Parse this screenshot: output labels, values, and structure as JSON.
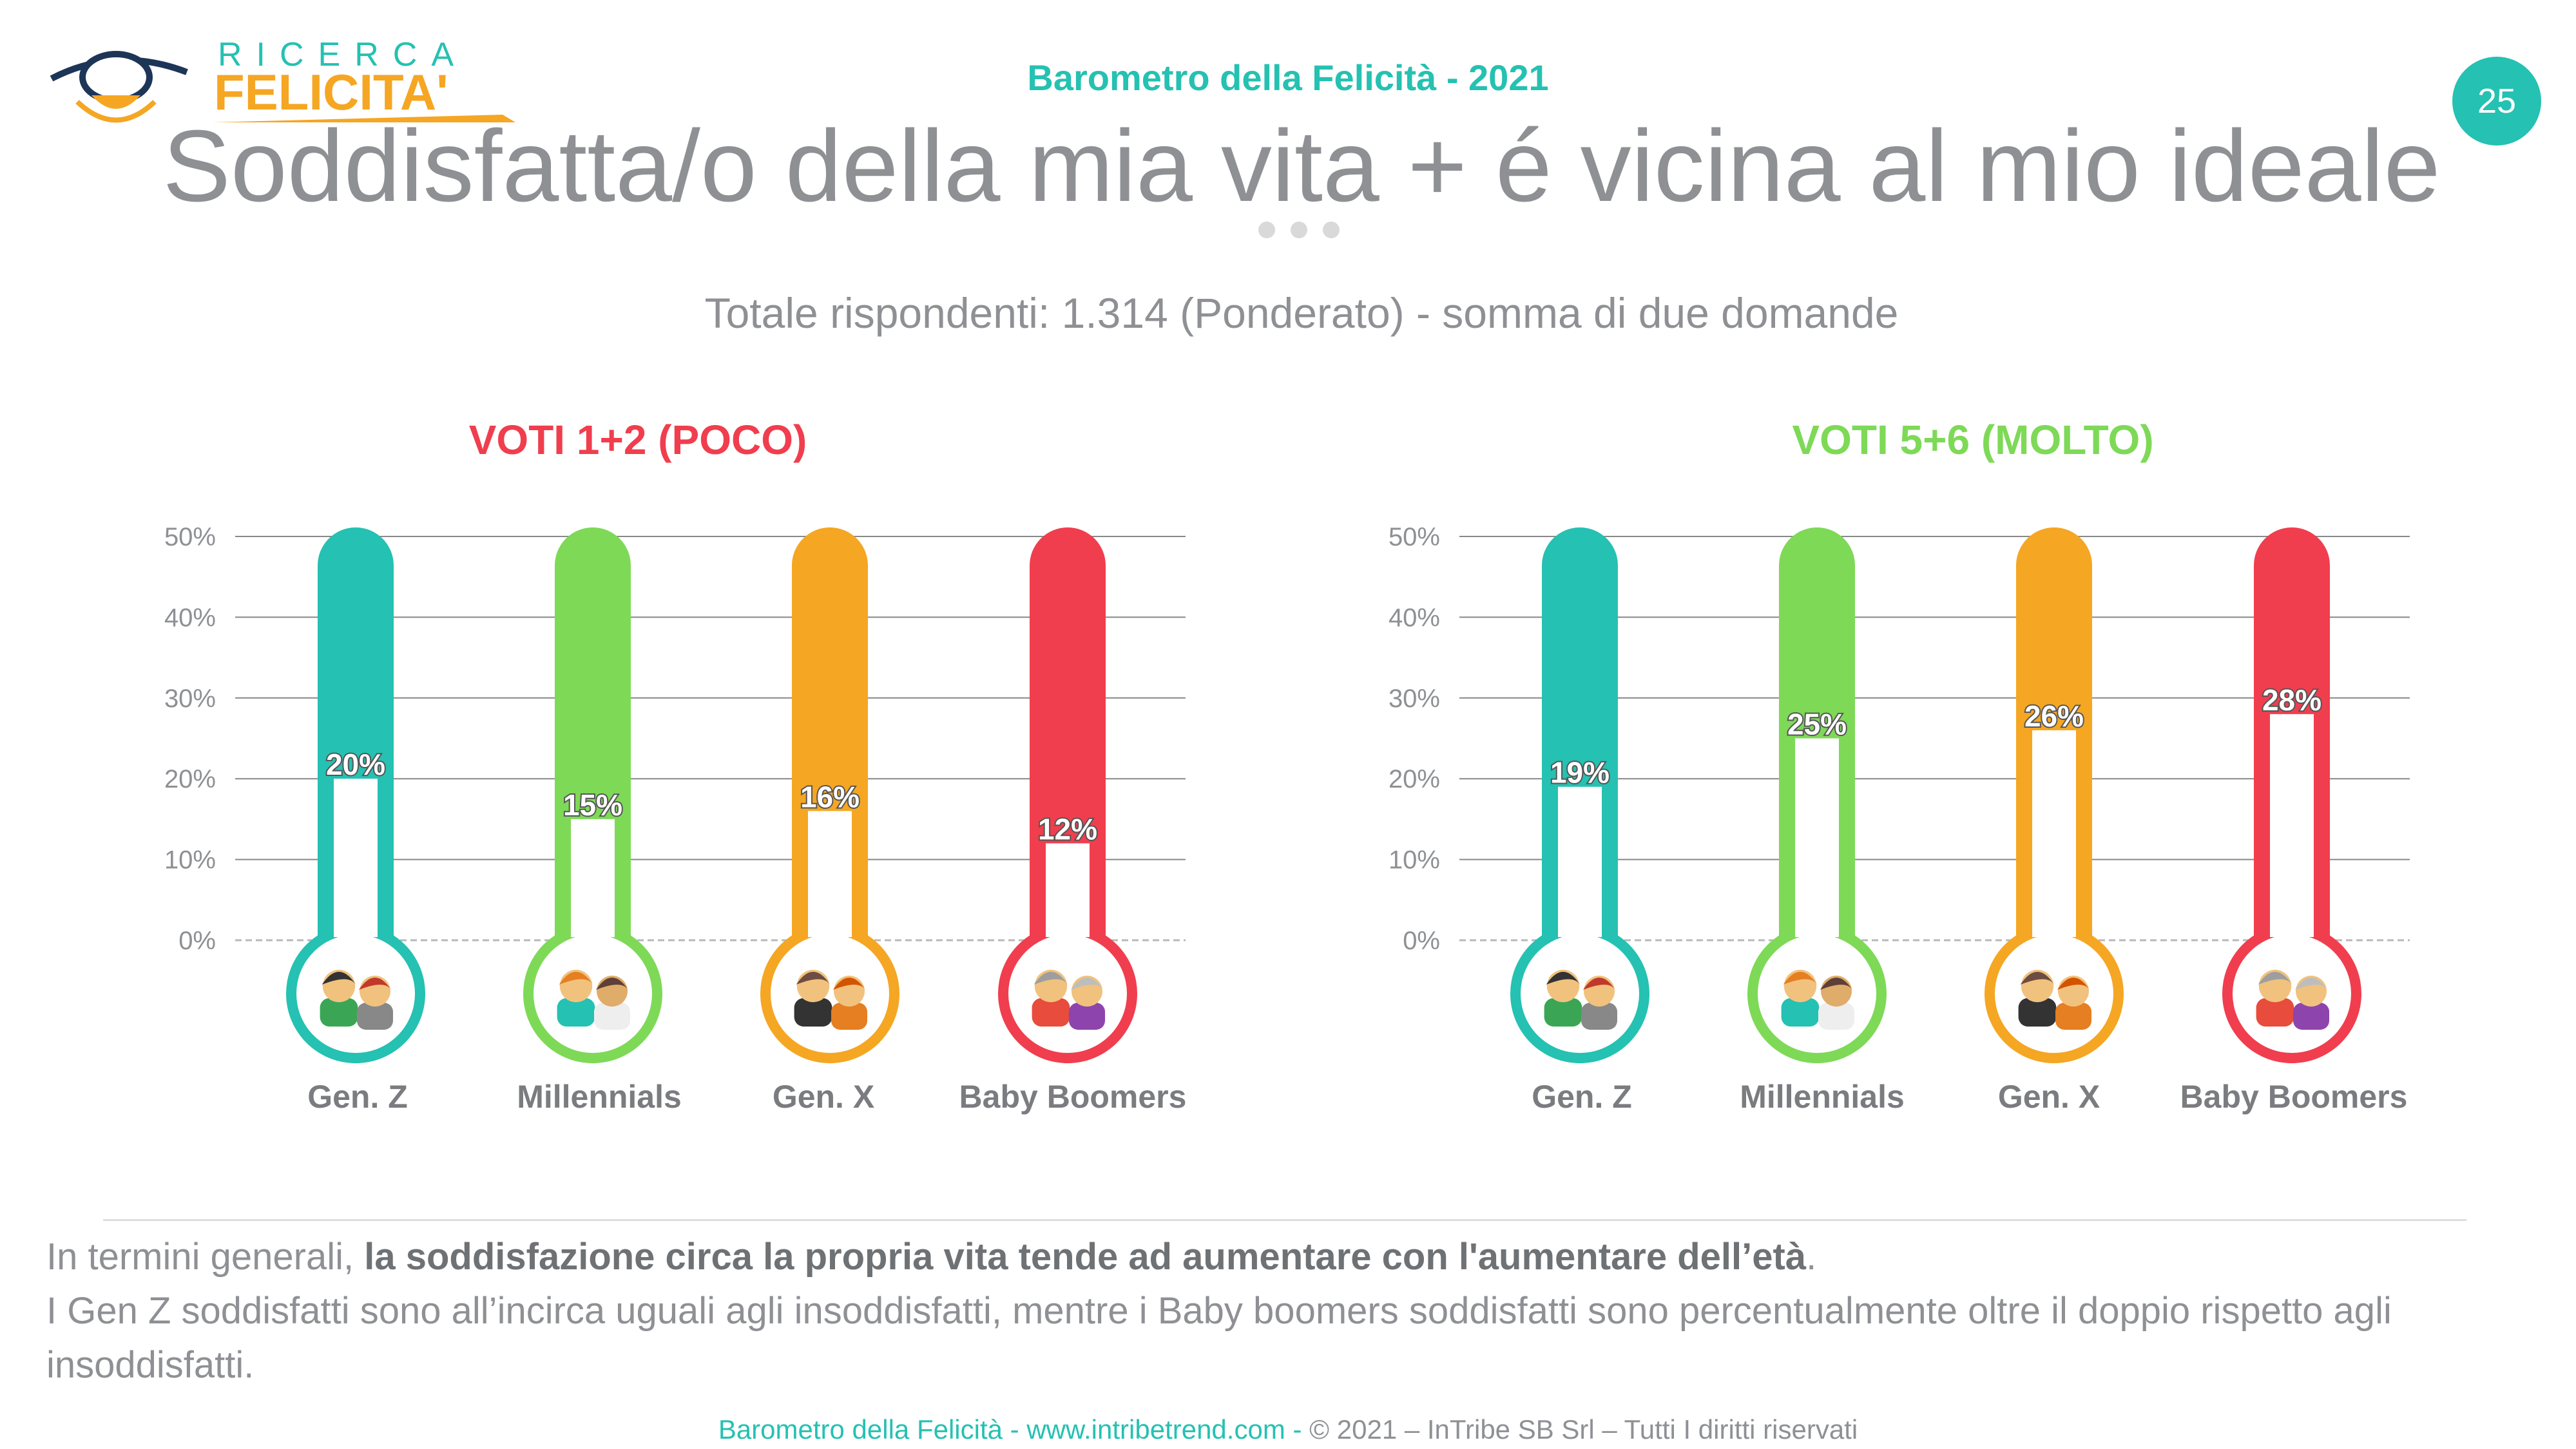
{
  "header": {
    "title": "Barometro della Felicità - 2021",
    "page_number": "25"
  },
  "logo": {
    "line1": "RICERCA",
    "line2": "FELICITA'"
  },
  "main_title": "Soddisfatta/o della mia vita + é vicina al mio ideale",
  "subtitle": "Totale rispondenti: 1.314 (Ponderato) - somma di due domande",
  "colors": {
    "teal": "#25c1b2",
    "green": "#7ed957",
    "orange": "#f5a623",
    "red": "#f03e4e",
    "gray_text": "#8e9094"
  },
  "chart_data": [
    {
      "type": "bar",
      "title": "VOTI 1+2 (POCO)",
      "title_color": "#f03e4e",
      "categories": [
        "Gen. Z",
        "Millennials",
        "Gen. X",
        "Baby Boomers"
      ],
      "values": [
        20,
        15,
        16,
        12
      ],
      "value_labels": [
        "20%",
        "15%",
        "16%",
        "12%"
      ],
      "bar_colors": [
        "#25c1b2",
        "#7ed957",
        "#f5a623",
        "#f03e4e"
      ],
      "icons": [
        "gen-z-people-icon",
        "millennials-people-icon",
        "gen-x-people-icon",
        "baby-boomers-people-icon"
      ],
      "ylim": [
        0,
        50
      ],
      "y_ticks": [
        "0%",
        "10%",
        "20%",
        "30%",
        "40%",
        "50%"
      ],
      "grid": true
    },
    {
      "type": "bar",
      "title": "VOTI 5+6 (MOLTO)",
      "title_color": "#7ed957",
      "categories": [
        "Gen. Z",
        "Millennials",
        "Gen. X",
        "Baby Boomers"
      ],
      "values": [
        19,
        25,
        26,
        28
      ],
      "value_labels": [
        "19%",
        "25%",
        "26%",
        "28%"
      ],
      "bar_colors": [
        "#25c1b2",
        "#7ed957",
        "#f5a623",
        "#f03e4e"
      ],
      "icons": [
        "gen-z-people-icon",
        "millennials-people-icon",
        "gen-x-people-icon",
        "baby-boomers-people-icon"
      ],
      "ylim": [
        0,
        50
      ],
      "y_ticks": [
        "0%",
        "10%",
        "20%",
        "30%",
        "40%",
        "50%"
      ],
      "grid": true
    }
  ],
  "conclusion": {
    "line1_prefix": "In termini generali, ",
    "line1_bold": "la soddisfazione circa la propria vita tende ad aumentare con l'aumentare dell’età",
    "line1_suffix": ".",
    "line2": "I Gen Z soddisfatti sono all’incirca uguali agli insoddisfatti, mentre i Baby boomers soddisfatti sono percentualmente oltre il doppio rispetto agli insoddisfatti."
  },
  "footer": {
    "teal_text": "Barometro della Felicità - www.intribetrend.com",
    "separator": " - ",
    "gray_text": "© 2021 – InTribe SB Srl – Tutti I diritti riservati"
  }
}
